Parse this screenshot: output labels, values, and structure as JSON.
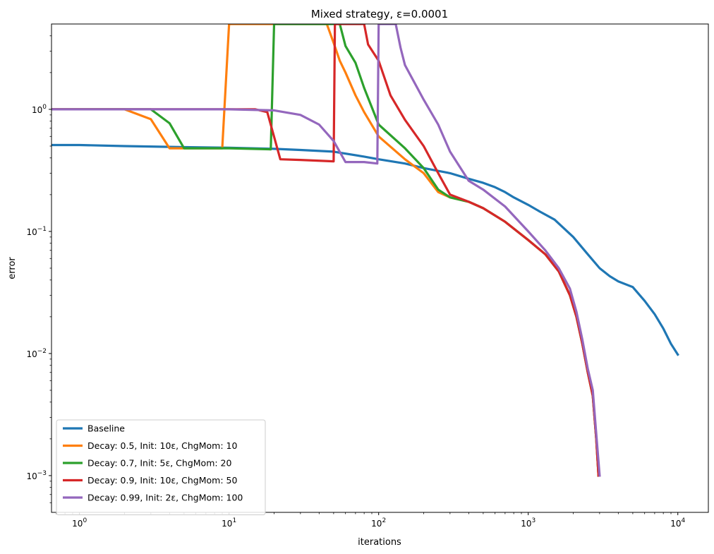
{
  "chart_data": {
    "type": "line",
    "title": "Mixed strategy, ε=0.0001",
    "xlabel": "iterations",
    "ylabel": "error",
    "xscale": "log",
    "yscale": "log",
    "xlim": [
      0.65,
      16000
    ],
    "ylim": [
      0.0005,
      5
    ],
    "x_ticks": [
      {
        "value": 1,
        "base": "10",
        "exp": "0"
      },
      {
        "value": 10,
        "base": "10",
        "exp": "1"
      },
      {
        "value": 100,
        "base": "10",
        "exp": "2"
      },
      {
        "value": 1000,
        "base": "10",
        "exp": "3"
      },
      {
        "value": 10000,
        "base": "10",
        "exp": "4"
      }
    ],
    "y_ticks": [
      {
        "value": 0.001,
        "base": "10",
        "exp": "−3"
      },
      {
        "value": 0.01,
        "base": "10",
        "exp": "−2"
      },
      {
        "value": 0.1,
        "base": "10",
        "exp": "−1"
      },
      {
        "value": 1,
        "base": "10",
        "exp": "0"
      }
    ],
    "grid": false,
    "legend_position": "lower-left",
    "series": [
      {
        "name": "Baseline",
        "color": "#1f77b4",
        "points": [
          [
            0.65,
            0.51
          ],
          [
            1,
            0.51
          ],
          [
            2,
            0.5
          ],
          [
            5,
            0.49
          ],
          [
            10,
            0.485
          ],
          [
            20,
            0.475
          ],
          [
            30,
            0.465
          ],
          [
            50,
            0.45
          ],
          [
            80,
            0.41
          ],
          [
            100,
            0.39
          ],
          [
            150,
            0.36
          ],
          [
            200,
            0.33
          ],
          [
            300,
            0.3
          ],
          [
            400,
            0.27
          ],
          [
            500,
            0.25
          ],
          [
            600,
            0.23
          ],
          [
            700,
            0.21
          ],
          [
            800,
            0.19
          ],
          [
            1000,
            0.165
          ],
          [
            1200,
            0.145
          ],
          [
            1500,
            0.125
          ],
          [
            2000,
            0.09
          ],
          [
            2500,
            0.065
          ],
          [
            3000,
            0.05
          ],
          [
            3500,
            0.043
          ],
          [
            4000,
            0.039
          ],
          [
            5000,
            0.035
          ],
          [
            6000,
            0.027
          ],
          [
            7000,
            0.021
          ],
          [
            8000,
            0.016
          ],
          [
            9000,
            0.012
          ],
          [
            10000,
            0.0098
          ]
        ]
      },
      {
        "name": "Decay: 0.5, Init: 10ε, ChgMom: 10",
        "color": "#ff7f0e",
        "points": [
          [
            0.65,
            1.0
          ],
          [
            2,
            1.0
          ],
          [
            3,
            0.83
          ],
          [
            4,
            0.48
          ],
          [
            5,
            0.48
          ],
          [
            9,
            0.48
          ],
          [
            10,
            5
          ],
          [
            45,
            5
          ],
          [
            50,
            3.5
          ],
          [
            55,
            2.5
          ],
          [
            60,
            2.0
          ],
          [
            70,
            1.3
          ],
          [
            80,
            0.95
          ],
          [
            100,
            0.6
          ],
          [
            150,
            0.39
          ],
          [
            200,
            0.3
          ],
          [
            250,
            0.21
          ],
          [
            300,
            0.19
          ],
          [
            400,
            0.175
          ],
          [
            500,
            0.155
          ],
          [
            700,
            0.12
          ],
          [
            1000,
            0.085
          ],
          [
            1300,
            0.065
          ],
          [
            1600,
            0.047
          ],
          [
            1900,
            0.03
          ],
          [
            2100,
            0.02
          ],
          [
            2300,
            0.012
          ],
          [
            2500,
            0.007
          ],
          [
            2700,
            0.0045
          ],
          [
            2850,
            0.002
          ],
          [
            2950,
            0.001
          ]
        ]
      },
      {
        "name": "Decay: 0.7, Init: 5ε, ChgMom: 20",
        "color": "#2ca02c",
        "points": [
          [
            0.65,
            1.0
          ],
          [
            3,
            1.0
          ],
          [
            4,
            0.77
          ],
          [
            5,
            0.48
          ],
          [
            10,
            0.48
          ],
          [
            19,
            0.47
          ],
          [
            20,
            5
          ],
          [
            55,
            5
          ],
          [
            60,
            3.3
          ],
          [
            70,
            2.4
          ],
          [
            80,
            1.5
          ],
          [
            100,
            0.75
          ],
          [
            150,
            0.48
          ],
          [
            200,
            0.33
          ],
          [
            250,
            0.22
          ],
          [
            300,
            0.19
          ],
          [
            400,
            0.175
          ],
          [
            500,
            0.155
          ],
          [
            700,
            0.12
          ],
          [
            1000,
            0.085
          ],
          [
            1300,
            0.065
          ],
          [
            1600,
            0.047
          ],
          [
            1900,
            0.03
          ],
          [
            2100,
            0.02
          ],
          [
            2300,
            0.012
          ],
          [
            2500,
            0.007
          ],
          [
            2700,
            0.0045
          ],
          [
            2850,
            0.002
          ],
          [
            2950,
            0.001
          ]
        ]
      },
      {
        "name": "Decay: 0.9, Init: 10ε, ChgMom: 50",
        "color": "#d62728",
        "points": [
          [
            0.65,
            1.0
          ],
          [
            15,
            1.0
          ],
          [
            18,
            0.95
          ],
          [
            22,
            0.39
          ],
          [
            30,
            0.385
          ],
          [
            50,
            0.375
          ],
          [
            51,
            5
          ],
          [
            80,
            5
          ],
          [
            85,
            3.4
          ],
          [
            100,
            2.5
          ],
          [
            120,
            1.3
          ],
          [
            150,
            0.82
          ],
          [
            200,
            0.5
          ],
          [
            250,
            0.3
          ],
          [
            300,
            0.2
          ],
          [
            400,
            0.175
          ],
          [
            500,
            0.155
          ],
          [
            700,
            0.12
          ],
          [
            1000,
            0.085
          ],
          [
            1300,
            0.065
          ],
          [
            1600,
            0.047
          ],
          [
            1900,
            0.03
          ],
          [
            2100,
            0.02
          ],
          [
            2300,
            0.012
          ],
          [
            2500,
            0.007
          ],
          [
            2700,
            0.0045
          ],
          [
            2850,
            0.002
          ],
          [
            2950,
            0.001
          ]
        ]
      },
      {
        "name": "Decay: 0.99, Init: 2ε, ChgMom: 100",
        "color": "#9467bd",
        "points": [
          [
            0.65,
            1.0
          ],
          [
            10,
            1.0
          ],
          [
            20,
            0.98
          ],
          [
            30,
            0.9
          ],
          [
            40,
            0.75
          ],
          [
            50,
            0.55
          ],
          [
            60,
            0.37
          ],
          [
            80,
            0.37
          ],
          [
            98,
            0.36
          ],
          [
            100,
            5
          ],
          [
            130,
            5
          ],
          [
            140,
            3.2
          ],
          [
            150,
            2.3
          ],
          [
            200,
            1.2
          ],
          [
            250,
            0.75
          ],
          [
            300,
            0.45
          ],
          [
            400,
            0.26
          ],
          [
            500,
            0.22
          ],
          [
            700,
            0.16
          ],
          [
            1000,
            0.1
          ],
          [
            1300,
            0.07
          ],
          [
            1600,
            0.05
          ],
          [
            1900,
            0.034
          ],
          [
            2100,
            0.022
          ],
          [
            2300,
            0.013
          ],
          [
            2500,
            0.0075
          ],
          [
            2700,
            0.005
          ],
          [
            2850,
            0.0022
          ],
          [
            3000,
            0.001
          ]
        ]
      }
    ]
  }
}
